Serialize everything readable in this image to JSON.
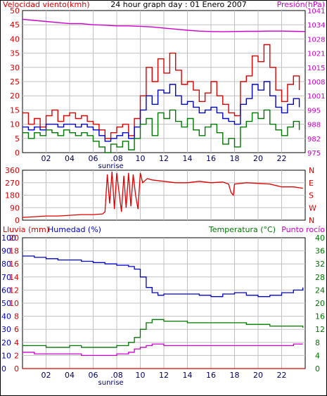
{
  "colors": {
    "red": "#dd0000",
    "blue": "#0000cc",
    "green": "#007700",
    "magenta": "#cc00cc",
    "grid": "#c0c0c0",
    "frame": "#000000"
  },
  "chart_data": [
    {
      "type": "line",
      "title": "24 hour graph day : 01 Enero 2007",
      "left_label": "Velocidad viento(kmh)",
      "right_label": "Presión(hPa)",
      "xticks": [
        "02",
        "04",
        "06",
        ".08",
        "10",
        "12",
        "14",
        "16",
        "18",
        "20",
        "22"
      ],
      "xmarker": "sunrise",
      "xlim": [
        0,
        24
      ],
      "ylim_left": [
        0,
        50
      ],
      "yticks_left": [
        0,
        5,
        10,
        15,
        20,
        25,
        30,
        35,
        40,
        45,
        50
      ],
      "ylim_right": [
        975,
        1040
      ],
      "yticks_right": [
        975,
        982,
        988,
        995,
        1001,
        1008,
        1015,
        1021,
        1028,
        1034,
        1041
      ],
      "series": [
        {
          "color": "red",
          "axis": "left",
          "x": [
            0,
            0.5,
            1,
            1.5,
            2,
            2.5,
            3,
            3.5,
            4,
            4.5,
            5,
            5.5,
            6,
            6.5,
            7,
            7.5,
            8,
            8.5,
            9,
            9.5,
            10,
            10.5,
            11,
            11.5,
            12,
            12.5,
            13,
            13.5,
            14,
            14.5,
            15,
            15.5,
            16,
            16.5,
            17,
            17.5,
            18,
            18.5,
            19,
            19.5,
            20,
            20.5,
            21,
            21.5,
            22,
            22.5,
            23,
            23.5
          ],
          "y": [
            14,
            10,
            12,
            9,
            13,
            15,
            11,
            13,
            14,
            12,
            13,
            11,
            10,
            8,
            5,
            7,
            9,
            10,
            6,
            12,
            20,
            30,
            25,
            33,
            28,
            35,
            29,
            24,
            25,
            22,
            18,
            21,
            25,
            20,
            17,
            14,
            13,
            25,
            27,
            34,
            32,
            38,
            30,
            22,
            18,
            24,
            27,
            22
          ]
        },
        {
          "color": "blue",
          "axis": "left",
          "x": [
            0,
            0.5,
            1,
            1.5,
            2,
            2.5,
            3,
            3.5,
            4,
            4.5,
            5,
            5.5,
            6,
            6.5,
            7,
            7.5,
            8,
            8.5,
            9,
            9.5,
            10,
            10.5,
            11,
            11.5,
            12,
            12.5,
            13,
            13.5,
            14,
            14.5,
            15,
            15.5,
            16,
            16.5,
            17,
            17.5,
            18,
            18.5,
            19,
            19.5,
            20,
            20.5,
            21,
            21.5,
            22,
            22.5,
            23,
            23.5
          ],
          "y": [
            9,
            8,
            9,
            8,
            10,
            10,
            9,
            10,
            10,
            9,
            10,
            9,
            8,
            6,
            4,
            5,
            6,
            7,
            5,
            9,
            15,
            20,
            17,
            22,
            21,
            24,
            20,
            17,
            18,
            16,
            14,
            15,
            16,
            14,
            12,
            11,
            10,
            17,
            19,
            24,
            22,
            25,
            20,
            16,
            14,
            17,
            19,
            16
          ]
        },
        {
          "color": "green",
          "axis": "left",
          "x": [
            0,
            0.5,
            1,
            1.5,
            2,
            2.5,
            3,
            3.5,
            4,
            4.5,
            5,
            5.5,
            6,
            6.5,
            7,
            7.5,
            8,
            8.5,
            9,
            9.5,
            10,
            10.5,
            11,
            11.5,
            12,
            12.5,
            13,
            13.5,
            14,
            14.5,
            15,
            15.5,
            16,
            16.5,
            17,
            17.5,
            18,
            18.5,
            19,
            19.5,
            20,
            20.5,
            21,
            21.5,
            22,
            22.5,
            23,
            23.5
          ],
          "y": [
            7,
            5,
            7,
            6,
            8,
            7,
            6,
            8,
            7,
            6,
            7,
            6,
            4,
            2,
            0,
            3,
            2,
            4,
            1,
            5,
            10,
            12,
            6,
            14,
            12,
            15,
            11,
            9,
            12,
            8,
            6,
            9,
            10,
            7,
            3,
            5,
            2,
            9,
            11,
            14,
            12,
            15,
            10,
            8,
            6,
            9,
            11,
            8
          ]
        },
        {
          "color": "magenta",
          "axis": "right",
          "x": [
            0,
            1,
            2,
            3,
            4,
            5,
            6,
            7,
            8,
            9,
            10,
            11,
            12,
            13,
            14,
            15,
            16,
            17,
            18,
            19,
            20,
            21,
            22,
            23,
            24
          ],
          "y": [
            1036,
            1035.5,
            1035,
            1034.5,
            1034,
            1034,
            1033.5,
            1033.3,
            1033,
            1033,
            1032.8,
            1032.5,
            1032,
            1031.5,
            1031,
            1030.6,
            1030.4,
            1030.3,
            1030.4,
            1030.5,
            1030.5,
            1030.6,
            1030.6,
            1030.5,
            1030.4
          ]
        }
      ]
    },
    {
      "type": "line",
      "title": "",
      "left_label": "",
      "xlim": [
        0,
        24
      ],
      "ylim_left": [
        0,
        360
      ],
      "yticks_left": [
        0,
        90,
        180,
        270,
        360
      ],
      "right_ticks": [
        "N",
        "W",
        "S",
        "E",
        "N"
      ],
      "series": [
        {
          "color": "red",
          "axis": "left",
          "x": [
            0,
            1,
            2,
            3,
            4,
            5,
            6,
            6.8,
            7.0,
            7.2,
            7.4,
            7.6,
            7.8,
            8.0,
            8.2,
            8.4,
            8.6,
            8.8,
            9.0,
            9.2,
            9.4,
            9.6,
            9.8,
            10,
            10.2,
            10.6,
            11,
            12,
            13,
            14,
            15,
            16,
            17,
            17.5,
            17.7,
            17.9,
            18,
            19,
            20,
            21,
            22,
            23,
            23.8
          ],
          "y": [
            20,
            25,
            30,
            30,
            35,
            40,
            40,
            45,
            60,
            330,
            120,
            350,
            80,
            340,
            200,
            60,
            320,
            90,
            340,
            100,
            330,
            180,
            80,
            340,
            270,
            300,
            290,
            280,
            270,
            270,
            280,
            270,
            275,
            260,
            200,
            180,
            260,
            270,
            265,
            260,
            240,
            240,
            230
          ]
        }
      ]
    },
    {
      "type": "line",
      "title": "",
      "left_label": "Lluvia (mm)",
      "left2_label": "Humedad (%)",
      "right_label": "Temperatura (°C)",
      "right2_label": "Punto rocío",
      "xticks": [
        "02",
        "04",
        "06",
        ".08",
        "10",
        "12",
        "14",
        "16",
        "18",
        "20",
        "22"
      ],
      "xmarker": "sunrise",
      "xlim": [
        0,
        24
      ],
      "yticks_rain": [
        0,
        2,
        4,
        6,
        8,
        10,
        12,
        14,
        16,
        18,
        20
      ],
      "yticks_hum": [
        0,
        10,
        20,
        30,
        40,
        50,
        60,
        70,
        80,
        90,
        100
      ],
      "ylim_right": [
        0,
        40
      ],
      "yticks_right": [
        0,
        4,
        8,
        12,
        16,
        20,
        24,
        28,
        32,
        36,
        40
      ],
      "series": [
        {
          "color": "blue",
          "axis": "humidity",
          "x": [
            0,
            1,
            2,
            3,
            4,
            5,
            6,
            7,
            8,
            9,
            9.5,
            10,
            10.5,
            11,
            11.5,
            12,
            13,
            14,
            15,
            16,
            17,
            18,
            19,
            20,
            21,
            22,
            23,
            23.8
          ],
          "y": [
            86,
            85,
            84,
            83,
            83,
            82,
            81,
            80,
            79,
            78,
            76,
            70,
            62,
            58,
            56,
            57,
            57,
            57,
            56,
            55,
            57,
            58,
            56,
            55,
            56,
            58,
            60,
            62
          ]
        },
        {
          "color": "green",
          "axis": "right",
          "x": [
            0,
            1,
            2,
            3,
            4,
            5,
            6,
            7,
            8,
            9,
            9.5,
            10,
            10.5,
            11,
            11.5,
            12,
            13,
            14,
            15,
            16,
            17,
            18,
            19,
            20,
            21,
            22,
            23,
            23.8
          ],
          "y": [
            7,
            7,
            6.5,
            6.5,
            7,
            6.5,
            6.5,
            6.5,
            7,
            8,
            9.5,
            12,
            14,
            15,
            15,
            14.5,
            14.5,
            14,
            14,
            14,
            14,
            14,
            13.5,
            13.5,
            13,
            13,
            13,
            12.5
          ]
        },
        {
          "color": "magenta",
          "axis": "right",
          "x": [
            0,
            1,
            2,
            3,
            4,
            5,
            6,
            7,
            8,
            9,
            9.5,
            10,
            10.5,
            11,
            11.5,
            12,
            13,
            14,
            15,
            16,
            17,
            18,
            19,
            20,
            21,
            22,
            23,
            23.8
          ],
          "y": [
            5,
            4.5,
            4.5,
            4.5,
            4.5,
            4,
            4,
            4,
            4.5,
            5,
            6,
            6.5,
            7,
            7.5,
            7.5,
            7,
            7,
            7,
            7,
            7,
            7,
            7,
            7,
            7,
            7,
            7,
            7.5,
            7.5
          ]
        },
        {
          "color": "red",
          "axis": "rain",
          "x": [
            0,
            24
          ],
          "y": [
            0,
            0
          ]
        }
      ]
    }
  ]
}
